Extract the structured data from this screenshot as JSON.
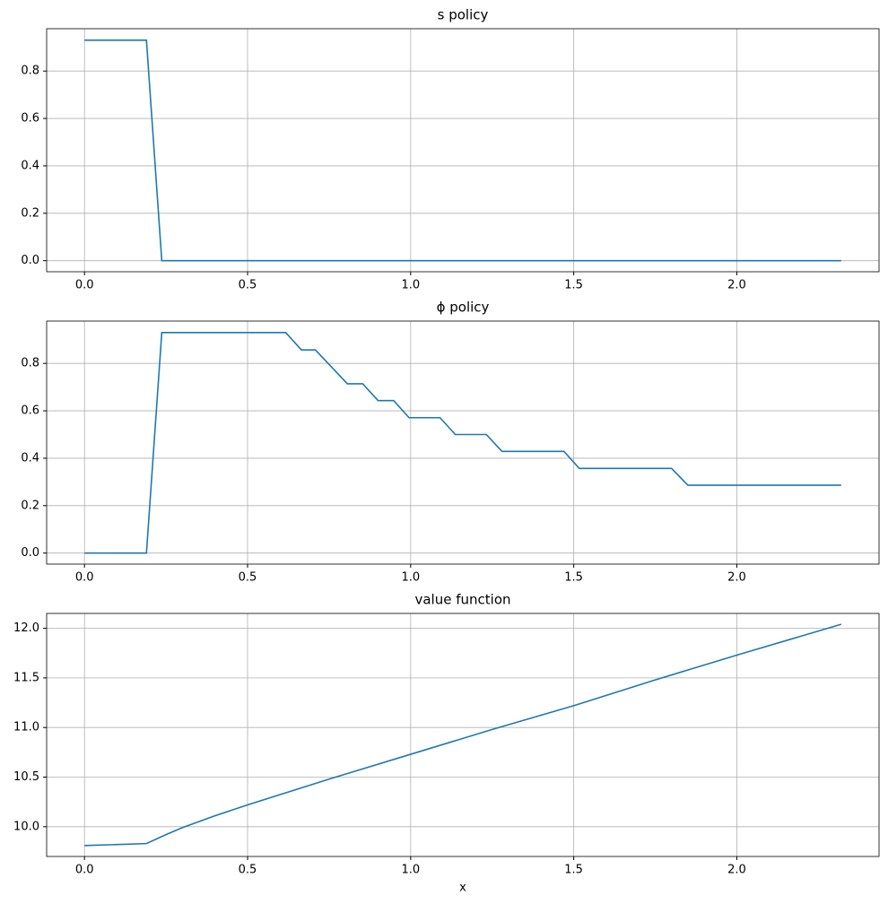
{
  "chart_data": [
    {
      "type": "line",
      "title": "s policy",
      "x": [
        0,
        0.19,
        0.237,
        2.32
      ],
      "series": [
        {
          "color": "#1f77b4",
          "values": [
            0.93,
            0.93,
            0,
            0
          ]
        }
      ],
      "xlim": [
        -0.116,
        2.436
      ],
      "xticks": [
        {
          "value": 0,
          "label": "0.0"
        },
        {
          "value": 0.5,
          "label": "0.5"
        },
        {
          "value": 1,
          "label": "1.0"
        },
        {
          "value": 1.5,
          "label": "1.5"
        },
        {
          "value": 2,
          "label": "2.0"
        }
      ],
      "ylim": [
        -0.0466,
        0.9786
      ],
      "yticks": [
        {
          "value": 0,
          "label": "0.0"
        },
        {
          "value": 0.2,
          "label": "0.2"
        },
        {
          "value": 0.4,
          "label": "0.4"
        },
        {
          "value": 0.6,
          "label": "0.6"
        },
        {
          "value": 0.8,
          "label": "0.8"
        }
      ],
      "grid": true
    },
    {
      "type": "line",
      "title": "ϕ policy",
      "x": [
        0,
        0.19,
        0.237,
        0.617,
        0.665,
        0.708,
        0.806,
        0.853,
        0.9,
        0.948,
        0.995,
        1.09,
        1.137,
        1.232,
        1.28,
        1.47,
        1.517,
        1.8,
        1.85,
        2.32
      ],
      "series": [
        {
          "color": "#1f77b4",
          "values": [
            0,
            0,
            0.93,
            0.93,
            0.857,
            0.857,
            0.714,
            0.714,
            0.643,
            0.643,
            0.571,
            0.571,
            0.5,
            0.5,
            0.429,
            0.429,
            0.357,
            0.357,
            0.286,
            0.286
          ]
        }
      ],
      "xlim": [
        -0.116,
        2.436
      ],
      "xticks": [
        {
          "value": 0,
          "label": "0.0"
        },
        {
          "value": 0.5,
          "label": "0.5"
        },
        {
          "value": 1,
          "label": "1.0"
        },
        {
          "value": 1.5,
          "label": "1.5"
        },
        {
          "value": 2,
          "label": "2.0"
        }
      ],
      "ylim": [
        -0.0466,
        0.9786
      ],
      "yticks": [
        {
          "value": 0,
          "label": "0.0"
        },
        {
          "value": 0.2,
          "label": "0.2"
        },
        {
          "value": 0.4,
          "label": "0.4"
        },
        {
          "value": 0.6,
          "label": "0.6"
        },
        {
          "value": 0.8,
          "label": "0.8"
        }
      ],
      "grid": true
    },
    {
      "type": "line",
      "title": "value function",
      "xlabel": "x",
      "x": [
        0,
        0.19,
        0.25,
        0.3,
        0.4,
        0.5,
        0.75,
        1.0,
        1.25,
        1.5,
        1.75,
        2.0,
        2.32
      ],
      "series": [
        {
          "color": "#1f77b4",
          "values": [
            9.81,
            9.83,
            9.92,
            9.99,
            10.11,
            10.22,
            10.48,
            10.73,
            10.98,
            11.22,
            11.48,
            11.73,
            12.04
          ]
        }
      ],
      "xlim": [
        -0.116,
        2.436
      ],
      "xticks": [
        {
          "value": 0,
          "label": "0.0"
        },
        {
          "value": 0.5,
          "label": "0.5"
        },
        {
          "value": 1,
          "label": "1.0"
        },
        {
          "value": 1.5,
          "label": "1.5"
        },
        {
          "value": 2,
          "label": "2.0"
        }
      ],
      "ylim": [
        9.7,
        12.15
      ],
      "yticks": [
        {
          "value": 10,
          "label": "10.0"
        },
        {
          "value": 10.5,
          "label": "10.5"
        },
        {
          "value": 11,
          "label": "11.0"
        },
        {
          "value": 11.5,
          "label": "11.5"
        },
        {
          "value": 12,
          "label": "12.0"
        }
      ],
      "grid": true
    }
  ]
}
